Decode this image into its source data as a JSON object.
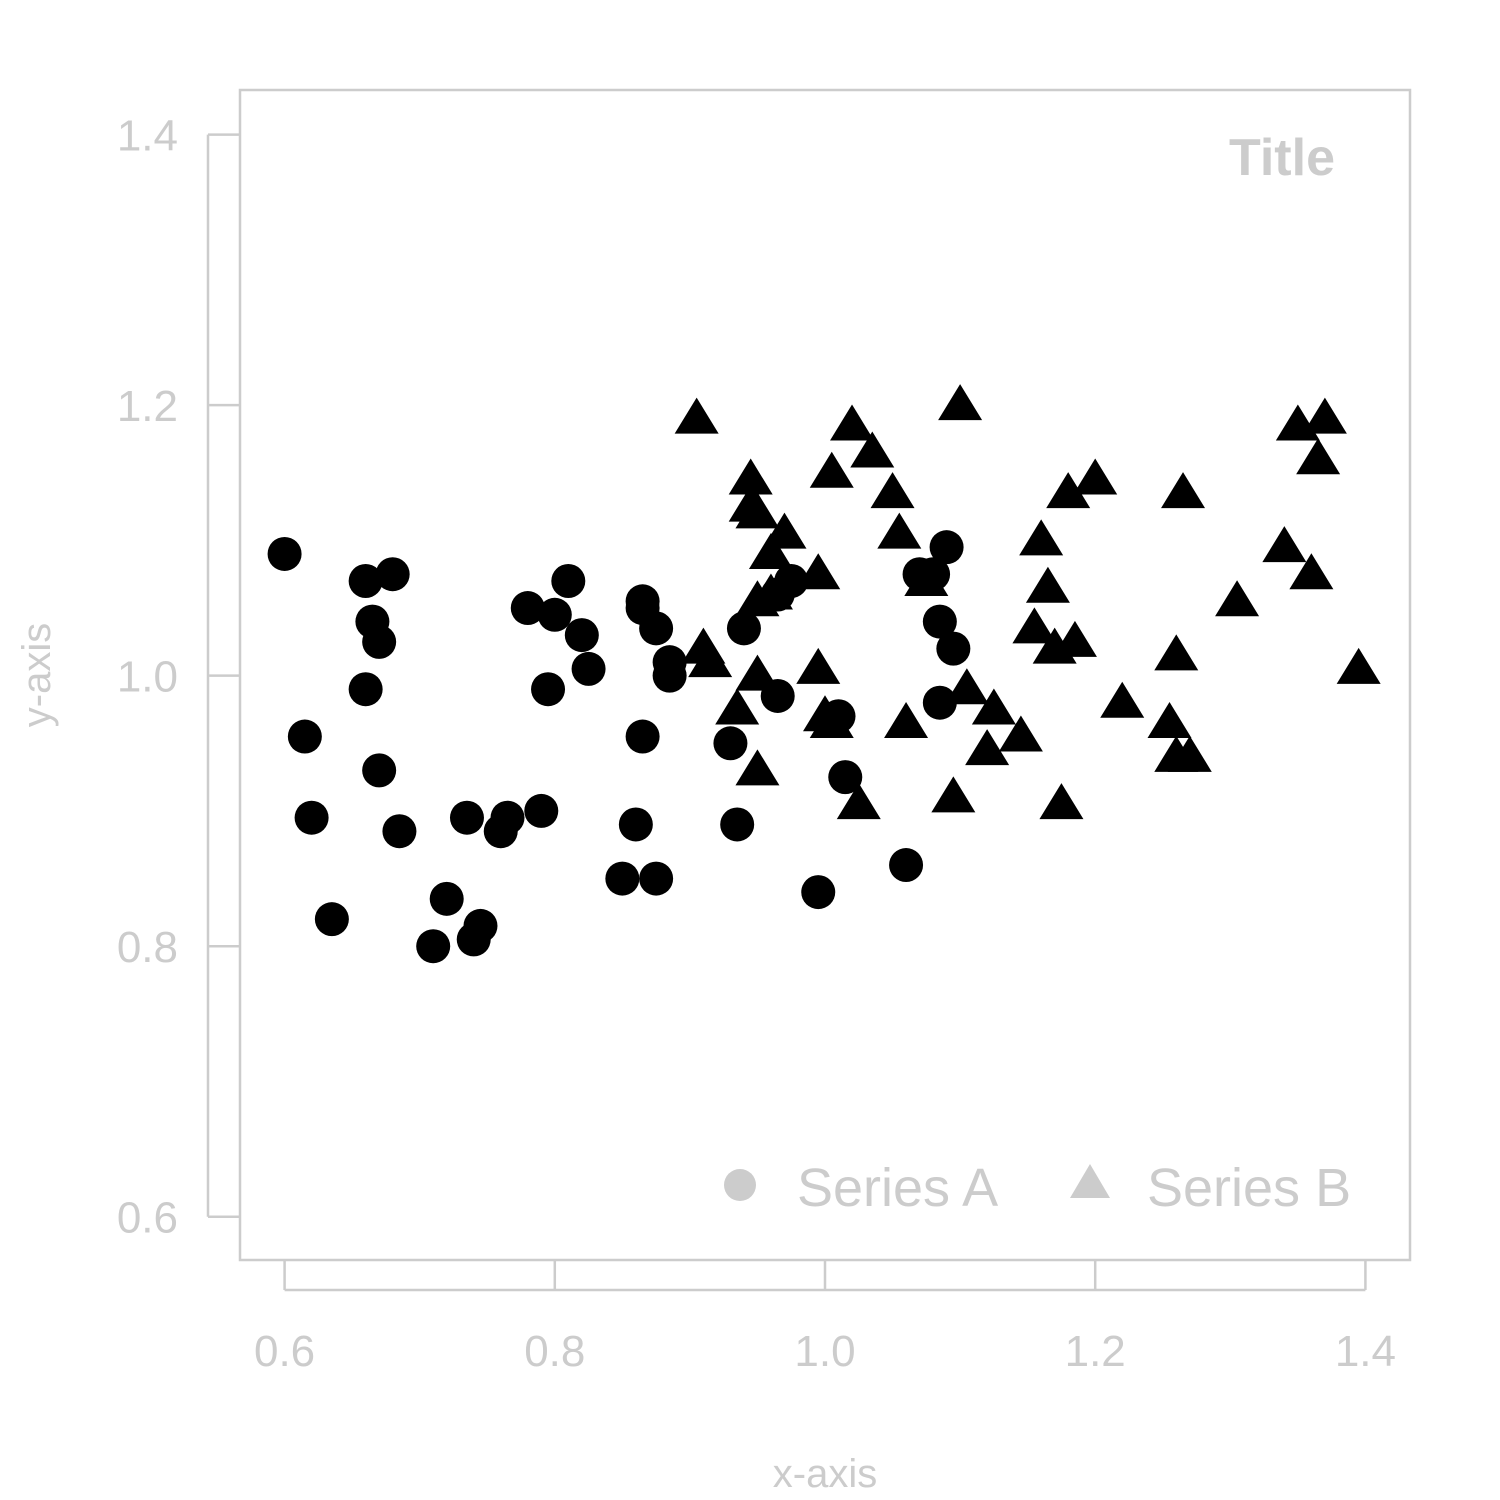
{
  "chart_data": {
    "type": "scatter",
    "title": "Title",
    "xlabel": "x-axis",
    "ylabel": "y-axis",
    "xlim": [
      0.567,
      1.433
    ],
    "ylim": [
      0.568,
      1.433
    ],
    "xticks": [
      0.6,
      0.8,
      1.0,
      1.2,
      1.4
    ],
    "xtick_labels": [
      "0.6",
      "0.8",
      "1.0",
      "1.2",
      "1.4"
    ],
    "yticks": [
      0.6,
      0.8,
      1.0,
      1.2,
      1.4
    ],
    "ytick_labels": [
      "0.6",
      "0.8",
      "1.0",
      "1.2",
      "1.4"
    ],
    "grid": false,
    "legend_position": "bottom-right",
    "colors": {
      "marker": "#000000",
      "axis": "#cccccc",
      "legend_marker": "#cccccc"
    },
    "series": [
      {
        "name": "Series A",
        "marker": "circle",
        "points": [
          [
            0.6,
            1.09
          ],
          [
            0.615,
            0.955
          ],
          [
            0.62,
            0.895
          ],
          [
            0.635,
            0.82
          ],
          [
            0.66,
            1.07
          ],
          [
            0.66,
            0.99
          ],
          [
            0.665,
            1.04
          ],
          [
            0.67,
            1.025
          ],
          [
            0.67,
            0.93
          ],
          [
            0.68,
            1.075
          ],
          [
            0.685,
            0.885
          ],
          [
            0.71,
            0.8
          ],
          [
            0.72,
            0.835
          ],
          [
            0.735,
            0.895
          ],
          [
            0.74,
            0.805
          ],
          [
            0.745,
            0.815
          ],
          [
            0.76,
            0.885
          ],
          [
            0.765,
            0.895
          ],
          [
            0.78,
            1.05
          ],
          [
            0.79,
            0.9
          ],
          [
            0.795,
            0.99
          ],
          [
            0.8,
            1.045
          ],
          [
            0.81,
            1.07
          ],
          [
            0.82,
            1.03
          ],
          [
            0.825,
            1.005
          ],
          [
            0.85,
            0.85
          ],
          [
            0.86,
            0.89
          ],
          [
            0.865,
            0.955
          ],
          [
            0.865,
            1.055
          ],
          [
            0.865,
            1.05
          ],
          [
            0.875,
            1.035
          ],
          [
            0.875,
            0.85
          ],
          [
            0.885,
            1.01
          ],
          [
            0.885,
            1.0
          ],
          [
            0.93,
            0.95
          ],
          [
            0.935,
            0.89
          ],
          [
            0.94,
            1.035
          ],
          [
            0.965,
            0.985
          ],
          [
            0.965,
            1.06
          ],
          [
            0.975,
            1.07
          ],
          [
            0.995,
            0.84
          ],
          [
            1.01,
            0.97
          ],
          [
            1.015,
            0.925
          ],
          [
            1.06,
            0.86
          ],
          [
            1.07,
            1.075
          ],
          [
            1.08,
            1.075
          ],
          [
            1.085,
            1.04
          ],
          [
            1.085,
            0.98
          ],
          [
            1.09,
            1.095
          ],
          [
            1.095,
            1.02
          ]
        ]
      },
      {
        "name": "Series B",
        "marker": "triangle",
        "points": [
          [
            0.905,
            1.19
          ],
          [
            0.91,
            1.02
          ],
          [
            0.915,
            1.01
          ],
          [
            0.935,
            0.975
          ],
          [
            0.945,
            1.145
          ],
          [
            0.945,
            1.125
          ],
          [
            0.95,
            1.12
          ],
          [
            0.95,
            1.055
          ],
          [
            0.95,
            1.0
          ],
          [
            0.95,
            0.93
          ],
          [
            0.96,
            1.09
          ],
          [
            0.96,
            1.06
          ],
          [
            0.97,
            1.105
          ],
          [
            0.995,
            1.075
          ],
          [
            0.995,
            1.005
          ],
          [
            1.0,
            0.97
          ],
          [
            1.005,
            1.15
          ],
          [
            1.005,
            0.965
          ],
          [
            1.02,
            1.185
          ],
          [
            1.025,
            0.905
          ],
          [
            1.035,
            1.165
          ],
          [
            1.05,
            1.135
          ],
          [
            1.055,
            1.105
          ],
          [
            1.06,
            0.965
          ],
          [
            1.075,
            1.07
          ],
          [
            1.095,
            0.91
          ],
          [
            1.1,
            1.2
          ],
          [
            1.105,
            0.99
          ],
          [
            1.12,
            0.945
          ],
          [
            1.125,
            0.975
          ],
          [
            1.145,
            0.955
          ],
          [
            1.155,
            1.035
          ],
          [
            1.16,
            1.1
          ],
          [
            1.165,
            1.065
          ],
          [
            1.17,
            1.02
          ],
          [
            1.175,
            0.905
          ],
          [
            1.18,
            1.135
          ],
          [
            1.185,
            1.025
          ],
          [
            1.2,
            1.145
          ],
          [
            1.22,
            0.98
          ],
          [
            1.255,
            0.965
          ],
          [
            1.26,
            0.94
          ],
          [
            1.26,
            1.015
          ],
          [
            1.265,
            1.135
          ],
          [
            1.27,
            0.94
          ],
          [
            1.305,
            1.055
          ],
          [
            1.34,
            1.095
          ],
          [
            1.35,
            1.185
          ],
          [
            1.36,
            1.075
          ],
          [
            1.365,
            1.16
          ],
          [
            1.37,
            1.19
          ],
          [
            1.395,
            1.005
          ]
        ]
      }
    ]
  }
}
